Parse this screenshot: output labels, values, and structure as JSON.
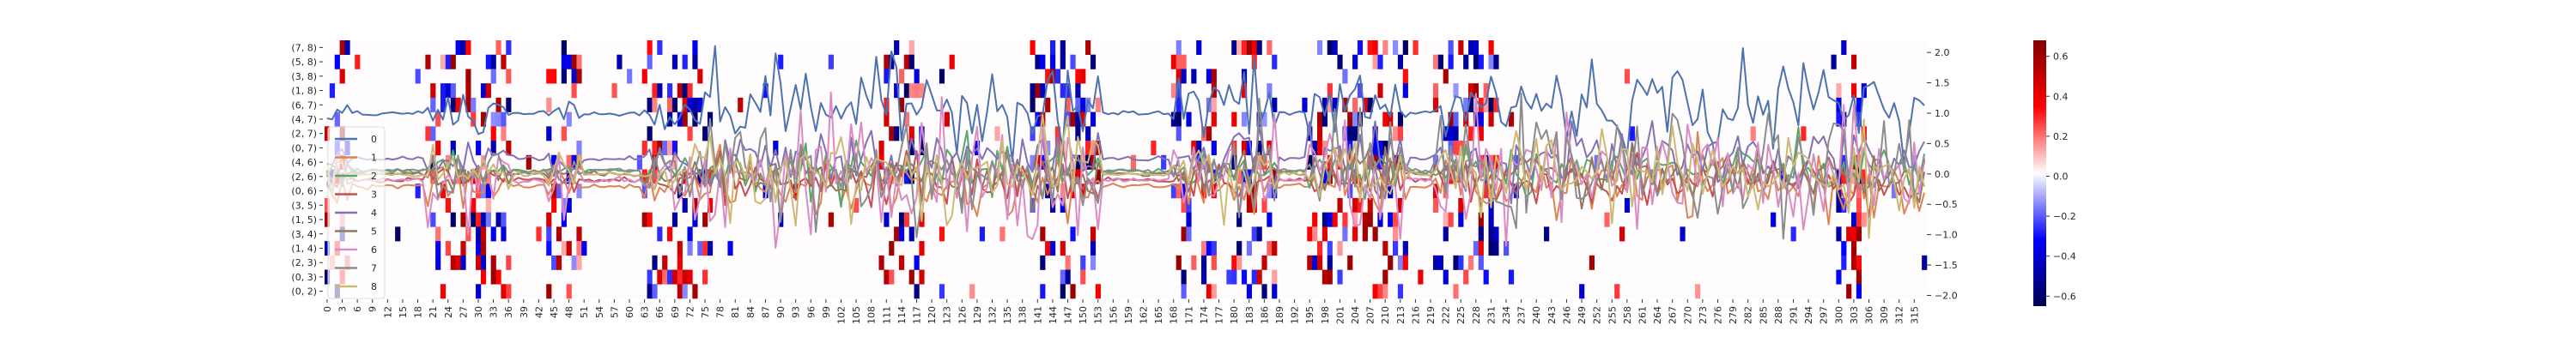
{
  "chart_data": {
    "type": "heatmap",
    "rows": [
      "(7, 8)",
      "(5, 8)",
      "(3, 8)",
      "(1, 8)",
      "(6, 7)",
      "(4, 7)",
      "(2, 7)",
      "(0, 7)",
      "(4, 6)",
      "(2, 6)",
      "(0, 6)",
      "(3, 5)",
      "(1, 5)",
      "(3, 4)",
      "(1, 4)",
      "(2, 3)",
      "(0, 3)",
      "(0, 2)"
    ],
    "x_tick_step": 3,
    "x_max": 315,
    "n_columns": 318,
    "colorbar": {
      "vmin": -0.65,
      "vmax": 0.68,
      "ticks": [
        0.6,
        0.4,
        0.2,
        0.0,
        -0.2,
        -0.4,
        -0.6
      ],
      "tick_labels": [
        "0.6",
        "0.4",
        "0.2",
        "0.0",
        "−0.2",
        "−0.4",
        "−0.6"
      ],
      "colormap": "seismic"
    },
    "active_column_spans": [
      [
        0,
        4
      ],
      [
        20,
        36
      ],
      [
        44,
        50
      ],
      [
        63,
        76
      ],
      [
        110,
        118
      ],
      [
        140,
        153
      ],
      [
        168,
        176
      ],
      [
        180,
        188
      ],
      [
        195,
        214
      ],
      [
        220,
        232
      ],
      [
        300,
        305
      ]
    ],
    "right_axis": {
      "ylim": [
        -2.05,
        2.2
      ],
      "ticks": [
        2.0,
        1.5,
        1.0,
        0.5,
        0.0,
        -0.5,
        -1.0,
        -1.5,
        -2.0
      ],
      "tick_labels": [
        "2.0",
        "1.5",
        "1.0",
        "0.5",
        "0.0",
        "−0.5",
        "−1.0",
        "−1.5",
        "−2.0"
      ]
    },
    "series": [
      {
        "name": "0",
        "color": "#4c72b0",
        "baseline": 1.0,
        "noise": 0.35
      },
      {
        "name": "1",
        "color": "#dd8452",
        "baseline": -0.2,
        "noise": 0.25
      },
      {
        "name": "2",
        "color": "#55a868",
        "baseline": 0.05,
        "noise": 0.2
      },
      {
        "name": "3",
        "color": "#c44e52",
        "baseline": -0.1,
        "noise": 0.2
      },
      {
        "name": "4",
        "color": "#8172b3",
        "baseline": 0.25,
        "noise": 0.25
      },
      {
        "name": "5",
        "color": "#937860",
        "baseline": 0.0,
        "noise": 0.2
      },
      {
        "name": "6",
        "color": "#da8bc3",
        "baseline": -0.1,
        "noise": 0.55
      },
      {
        "name": "7",
        "color": "#8c8c8c",
        "baseline": 0.05,
        "noise": 0.4
      },
      {
        "name": "8",
        "color": "#ccb974",
        "baseline": 0.0,
        "noise": 0.35
      }
    ],
    "legend": {
      "placement": "left"
    },
    "grid": false
  }
}
